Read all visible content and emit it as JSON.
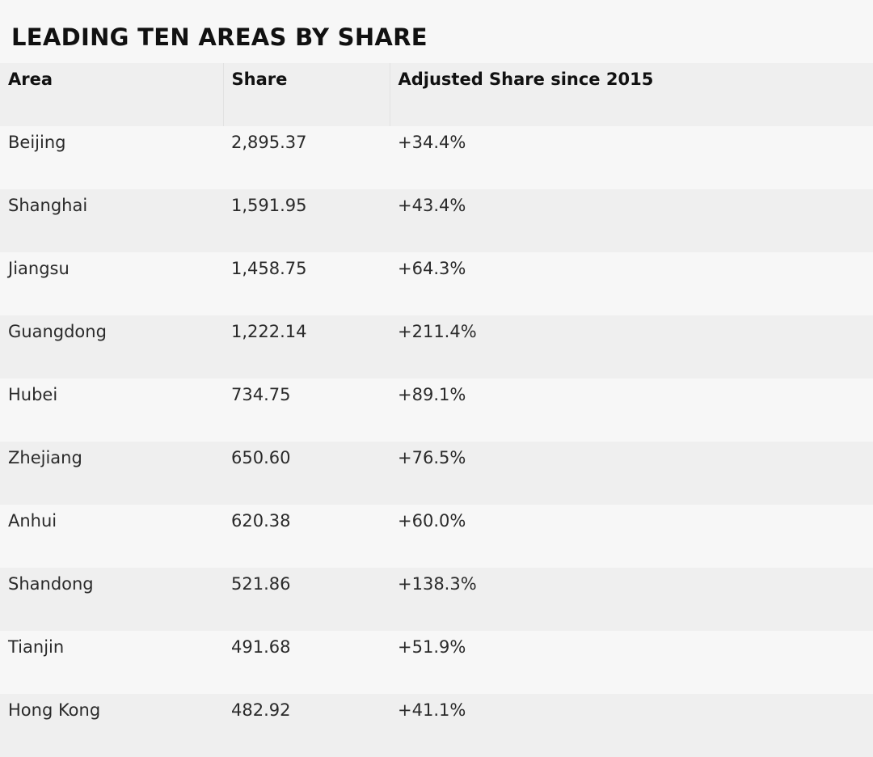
{
  "chart_data": {
    "type": "table",
    "title": "LEADING TEN AREAS BY SHARE",
    "columns": [
      "Area",
      "Share",
      "Adjusted Share since 2015"
    ],
    "rows": [
      {
        "area": "Beijing",
        "share": "2,895.37",
        "adjusted": "+34.4%"
      },
      {
        "area": "Shanghai",
        "share": "1,591.95",
        "adjusted": "+43.4%"
      },
      {
        "area": "Jiangsu",
        "share": "1,458.75",
        "adjusted": "+64.3%"
      },
      {
        "area": "Guangdong",
        "share": "1,222.14",
        "adjusted": "+211.4%"
      },
      {
        "area": "Hubei",
        "share": "734.75",
        "adjusted": "+89.1%"
      },
      {
        "area": "Zhejiang",
        "share": "650.60",
        "adjusted": "+76.5%"
      },
      {
        "area": "Anhui",
        "share": "620.38",
        "adjusted": "+60.0%"
      },
      {
        "area": "Shandong",
        "share": "521.86",
        "adjusted": "+138.3%"
      },
      {
        "area": "Tianjin",
        "share": "491.68",
        "adjusted": "+51.9%"
      },
      {
        "area": "Hong Kong",
        "share": "482.92",
        "adjusted": "+41.1%"
      }
    ]
  },
  "colors": {
    "background": "#f7f7f7",
    "header_background": "#efefef",
    "row_stripe": "#efefef",
    "text": "#2a2a2a",
    "title_text": "#111111"
  }
}
